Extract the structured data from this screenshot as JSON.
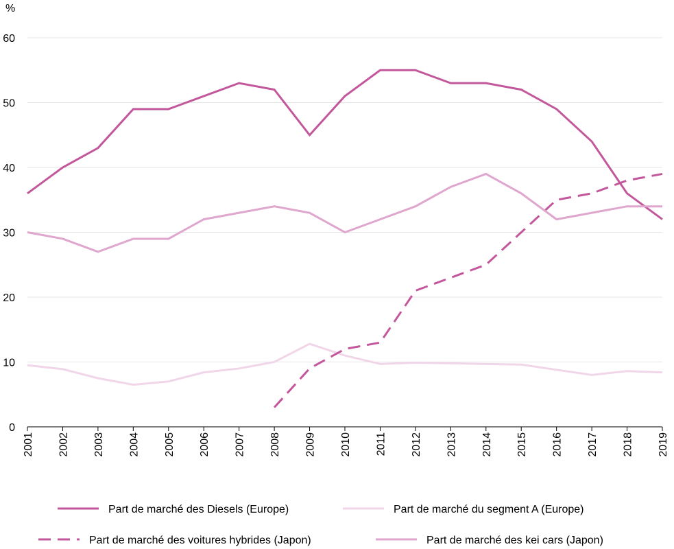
{
  "chart_data": {
    "type": "line",
    "y_unit": "%",
    "ylim": [
      0,
      60
    ],
    "yticks": [
      0,
      10,
      20,
      30,
      40,
      50,
      60
    ],
    "categories": [
      "2001",
      "2002",
      "2003",
      "2004",
      "2005",
      "2006",
      "2007",
      "2008",
      "2009",
      "2010",
      "2011",
      "2012",
      "2013",
      "2014",
      "2015",
      "2016",
      "2017",
      "2018",
      "2019"
    ],
    "grid": true,
    "legend_position": "bottom",
    "series": [
      {
        "name": "Part de marché des Diesels (Europe)",
        "color": "#c3579b",
        "dash": false,
        "values": [
          36,
          40,
          43,
          49,
          49,
          51,
          53,
          52,
          45,
          51,
          55,
          55,
          53,
          53,
          52,
          49,
          44,
          36,
          32
        ]
      },
      {
        "name": "Part de marché du segment A (Europe)",
        "color": "#f0d6e8",
        "dash": false,
        "values": [
          9.5,
          8.9,
          7.5,
          6.5,
          7,
          8.4,
          9,
          10,
          12.8,
          11,
          9.7,
          9.9,
          9.8,
          9.7,
          9.6,
          8.8,
          8,
          8.6,
          8.4
        ]
      },
      {
        "name": "Part de marché des voitures hybrides (Japon)",
        "color": "#c3579b",
        "dash": true,
        "values": [
          null,
          null,
          null,
          null,
          null,
          null,
          null,
          3,
          9,
          12,
          13,
          21,
          23,
          25,
          30,
          35,
          36,
          38,
          39
        ]
      },
      {
        "name": "Part de marché des kei cars (Japon)",
        "color": "#dfa6ce",
        "dash": false,
        "values": [
          30,
          29,
          27,
          29,
          29,
          32,
          33,
          34,
          33,
          30,
          32,
          34,
          37,
          39,
          36,
          32,
          33,
          34,
          34
        ]
      }
    ]
  }
}
